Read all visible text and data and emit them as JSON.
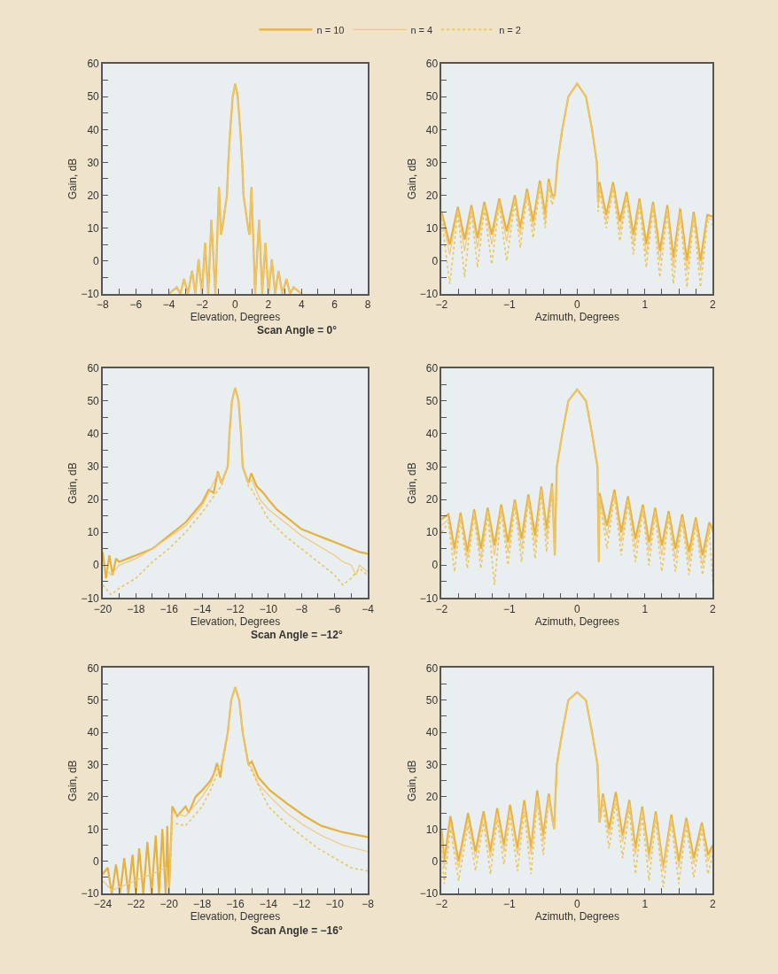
{
  "chart_data": [
    {
      "type": "line",
      "xlabel": "Elevation, Degrees",
      "ylabel": "Gain, dB",
      "annotations": [
        "Scan Angle = 0°"
      ],
      "legend": "top",
      "xlim": [
        -8,
        8
      ],
      "xticks": [
        -8,
        {
          "value": -7,
          "label": null
        },
        -6,
        {
          "value": -5,
          "label": null
        },
        -4,
        {
          "value": -3,
          "label": null
        },
        -2,
        {
          "value": -1,
          "label": null
        },
        0,
        {
          "value": 1,
          "label": null
        },
        2,
        {
          "value": 3,
          "label": null
        },
        4,
        {
          "value": 5,
          "label": null
        },
        6,
        {
          "value": 7,
          "label": null
        },
        8
      ],
      "ylim": [
        -10,
        60
      ],
      "yticks": [
        -10,
        {
          "value": -5,
          "label": null
        },
        0,
        {
          "value": 5,
          "label": null
        },
        10,
        {
          "value": 15,
          "label": null
        },
        20,
        {
          "value": 25,
          "label": null
        },
        30,
        {
          "value": 35,
          "label": null
        },
        40,
        {
          "value": 45,
          "label": null
        },
        50,
        {
          "value": 55,
          "label": null
        },
        60
      ],
      "series": [
        {
          "name": "n = 10",
          "color": "#e6b23a",
          "line_style": "solid",
          "x": [
            -4,
            -3.53,
            -3.31,
            -3.09,
            -2.85,
            -2.61,
            -2.41,
            -2.21,
            -2.01,
            -1.82,
            -1.63,
            -1.44,
            -1.2,
            -0.98,
            -0.86,
            -0.78,
            -0.5,
            -0.42,
            -0.3,
            -0.15,
            0,
            0.15,
            0.3,
            0.42,
            0.5,
            0.78,
            0.86,
            0.98,
            1.2,
            1.44,
            1.63,
            1.82,
            2.01,
            2.21,
            2.41,
            2.61,
            2.85,
            3.09,
            3.31,
            3.53,
            4
          ],
          "values": [
            -10,
            -8,
            -10,
            -5.5,
            -10,
            -3,
            -10,
            0.5,
            -10,
            5.5,
            -10,
            12.5,
            -10,
            22.5,
            8,
            10,
            20,
            30,
            40,
            50,
            54,
            50,
            40,
            30,
            20,
            10,
            8,
            22.5,
            -10,
            12.5,
            -10,
            5.5,
            -10,
            0.5,
            -10,
            -3,
            -10,
            -5.5,
            -10,
            -8,
            -10
          ]
        },
        {
          "name": "n = 4",
          "color": "#f2c77a",
          "line_style": "solid",
          "x": [
            -4,
            -3.53,
            -3.31,
            -3.09,
            -2.85,
            -2.61,
            -2.41,
            -2.21,
            -2.01,
            -1.82,
            -1.63,
            -1.44,
            -1.2,
            -0.98,
            -0.86,
            -0.78,
            -0.5,
            -0.42,
            -0.3,
            -0.15,
            0,
            0.15,
            0.3,
            0.42,
            0.5,
            0.78,
            0.86,
            0.98,
            1.2,
            1.44,
            1.63,
            1.82,
            2.01,
            2.21,
            2.41,
            2.61,
            2.85,
            3.09,
            3.31,
            3.53,
            4
          ],
          "values": [
            -10,
            -8,
            -10,
            -5.5,
            -10,
            -3,
            -10,
            0.5,
            -10,
            5.5,
            -10,
            12.5,
            -10,
            22.5,
            8,
            10,
            20,
            30,
            40,
            50,
            54,
            50,
            40,
            30,
            20,
            10,
            8,
            22.5,
            -10,
            12.5,
            -10,
            5.5,
            -10,
            0.5,
            -10,
            -3,
            -10,
            -5.5,
            -10,
            -8,
            -10
          ]
        },
        {
          "name": "n = 2",
          "color": "#e9c55a",
          "line_style": "dotted",
          "x": [
            -4,
            -3.53,
            -3.31,
            -3.09,
            -2.85,
            -2.61,
            -2.41,
            -2.21,
            -2.01,
            -1.82,
            -1.63,
            -1.44,
            -1.2,
            -0.98,
            -0.86,
            -0.78,
            -0.5,
            -0.42,
            -0.3,
            -0.15,
            0,
            0.15,
            0.3,
            0.42,
            0.5,
            0.78,
            0.86,
            0.98,
            1.2,
            1.44,
            1.63,
            1.82,
            2.01,
            2.21,
            2.41,
            2.61,
            2.85,
            3.09,
            3.31,
            3.53,
            4
          ],
          "values": [
            -10,
            -8,
            -10,
            -5.5,
            -10,
            -3,
            -10,
            0.5,
            -10,
            5.5,
            -10,
            12.5,
            -10,
            22.5,
            8,
            10,
            20,
            30,
            40,
            50,
            54,
            50,
            40,
            30,
            20,
            10,
            8,
            22.5,
            -10,
            12.5,
            -10,
            5.5,
            -10,
            0.5,
            -10,
            -3,
            -10,
            -5.5,
            -10,
            -8,
            -10
          ]
        }
      ]
    },
    {
      "type": "line",
      "xlabel": "Azimuth, Degrees",
      "ylabel": "Gain, dB",
      "xlim": [
        -2,
        2
      ],
      "xticks": [
        -2,
        {
          "value": -1.75,
          "label": null
        },
        {
          "value": -1.5,
          "label": null
        },
        {
          "value": -1.25,
          "label": null
        },
        -1,
        {
          "value": -0.75,
          "label": null
        },
        {
          "value": -0.5,
          "label": null
        },
        {
          "value": -0.25,
          "label": null
        },
        0,
        {
          "value": 0.25,
          "label": null
        },
        {
          "value": 0.5,
          "label": null
        },
        {
          "value": 0.75,
          "label": null
        },
        1,
        {
          "value": 1.25,
          "label": null
        },
        {
          "value": 1.5,
          "label": null
        },
        {
          "value": 1.75,
          "label": null
        },
        2
      ],
      "ylim": [
        -10,
        60
      ],
      "yticks": [
        -10,
        {
          "value": -5,
          "label": null
        },
        0,
        {
          "value": 5,
          "label": null
        },
        10,
        {
          "value": 15,
          "label": null
        },
        20,
        {
          "value": 25,
          "label": null
        },
        30,
        {
          "value": 35,
          "label": null
        },
        40,
        {
          "value": 45,
          "label": null
        },
        50,
        {
          "value": 55,
          "label": null
        },
        60
      ],
      "series": [
        {
          "color": "#e6b23a",
          "line_style": "solid",
          "x": [
            -2,
            -1.88,
            -1.76,
            -1.66,
            -1.56,
            -1.47,
            -1.37,
            -1.26,
            -1.15,
            -1.04,
            -0.92,
            -0.84,
            -0.74,
            -0.65,
            -0.55,
            -0.47,
            -0.42,
            -0.37,
            -0.33,
            -0.29,
            -0.22,
            -0.13,
            0,
            0.13,
            0.22,
            0.29,
            0.31,
            0.33,
            0.43,
            0.53,
            0.63,
            0.73,
            0.83,
            0.92,
            1.02,
            1.12,
            1.22,
            1.33,
            1.42,
            1.52,
            1.62,
            1.72,
            1.82,
            1.92,
            2
          ],
          "values": [
            15,
            5,
            16.5,
            6.5,
            17,
            7,
            18,
            8,
            19,
            9,
            20,
            10,
            22,
            12,
            24.5,
            14,
            25,
            20,
            20,
            30,
            40,
            50,
            54,
            50,
            40,
            30,
            18,
            24,
            14,
            24,
            12,
            21,
            8,
            19,
            5,
            18,
            3,
            17,
            1,
            16,
            0,
            15,
            0,
            14,
            13.5
          ]
        },
        {
          "color": "#f2c77a",
          "line_style": "solid",
          "x": [
            -2,
            -1.88,
            -1.76,
            -1.66,
            -1.56,
            -1.47,
            -1.37,
            -1.26,
            -1.15,
            -1.04,
            -0.92,
            -0.84,
            -0.74,
            -0.65,
            -0.55,
            -0.47,
            -0.42,
            -0.37,
            -0.33,
            -0.29,
            -0.22,
            -0.13,
            0,
            0.13,
            0.22,
            0.29,
            0.31,
            0.33,
            0.43,
            0.53,
            0.63,
            0.73,
            0.83,
            0.92,
            1.02,
            1.12,
            1.22,
            1.33,
            1.42,
            1.52,
            1.62,
            1.72,
            1.82,
            1.92,
            2
          ],
          "values": [
            14,
            2,
            15.5,
            3,
            16,
            4,
            17,
            5,
            18,
            6,
            19,
            8,
            21,
            10,
            23.5,
            12,
            24,
            19,
            20,
            30,
            40,
            50,
            54,
            50,
            40,
            30,
            17,
            23,
            12,
            23,
            9,
            20,
            5,
            18,
            2,
            17,
            0,
            16,
            -2,
            15,
            -3,
            14,
            -3,
            13,
            12.5
          ]
        },
        {
          "color": "#e9c55a",
          "line_style": "dotted",
          "x": [
            -2,
            -1.88,
            -1.76,
            -1.66,
            -1.56,
            -1.47,
            -1.37,
            -1.26,
            -1.15,
            -1.04,
            -0.92,
            -0.84,
            -0.74,
            -0.65,
            -0.55,
            -0.47,
            -0.42,
            -0.37,
            -0.33,
            -0.29,
            -0.22,
            -0.13,
            0,
            0.13,
            0.22,
            0.29,
            0.31,
            0.33,
            0.43,
            0.53,
            0.63,
            0.73,
            0.83,
            0.92,
            1.02,
            1.12,
            1.22,
            1.33,
            1.42,
            1.52,
            1.62,
            1.72,
            1.82,
            1.92,
            2
          ],
          "values": [
            13,
            -7,
            14.5,
            -5,
            15,
            -2,
            16,
            -1,
            17,
            0,
            18,
            4,
            20,
            7,
            22.5,
            10,
            23,
            17,
            20,
            30,
            40,
            50,
            54,
            50,
            40,
            30,
            15,
            22,
            10,
            22,
            6,
            19,
            2,
            17,
            -2,
            16,
            -5,
            15,
            -7,
            14,
            -8,
            13,
            -8,
            12,
            11
          ]
        }
      ]
    },
    {
      "type": "line",
      "xlabel": "Elevation, Degrees",
      "ylabel": "Gain, dB",
      "annotations": [
        "Scan Angle = −12°"
      ],
      "xlim": [
        -20,
        -4
      ],
      "xticks": [
        -20,
        {
          "value": -19,
          "label": null
        },
        -18,
        {
          "value": -17,
          "label": null
        },
        -16,
        {
          "value": -15,
          "label": null
        },
        -14,
        {
          "value": -13,
          "label": null
        },
        -12,
        {
          "value": -11,
          "label": null
        },
        -10,
        {
          "value": -9,
          "label": null
        },
        -8,
        {
          "value": -7,
          "label": null
        },
        -6,
        {
          "value": -5,
          "label": null
        },
        -4
      ],
      "ylim": [
        -10,
        60
      ],
      "yticks": [
        -10,
        {
          "value": -5,
          "label": null
        },
        0,
        {
          "value": 5,
          "label": null
        },
        10,
        {
          "value": 15,
          "label": null
        },
        20,
        {
          "value": 25,
          "label": null
        },
        30,
        {
          "value": 35,
          "label": null
        },
        40,
        {
          "value": 45,
          "label": null
        },
        50,
        {
          "value": 55,
          "label": null
        },
        60
      ],
      "series": [
        {
          "color": "#e6b23a",
          "line_style": "solid",
          "x": [
            -20,
            -19.8,
            -19.6,
            -19.4,
            -19.2,
            -19,
            -18.5,
            -18,
            -17.5,
            -17,
            -16.5,
            -16,
            -15.5,
            -15,
            -14.5,
            -14,
            -13.6,
            -13.3,
            -13.05,
            -12.84,
            -12.45,
            -12.35,
            -12.2,
            -12,
            -11.8,
            -11.65,
            -11.55,
            -11.2,
            -11.03,
            -10.7,
            -10.3,
            -10,
            -9.5,
            -9,
            -8.5,
            -8,
            -7.5,
            -7,
            -6.5,
            -6,
            -5.5,
            -5,
            -4.5,
            -4
          ],
          "values": [
            4,
            -4,
            3,
            -3,
            2,
            1,
            2,
            3,
            4,
            5,
            7,
            9,
            11,
            13,
            16,
            19,
            23,
            22,
            28.5,
            25,
            30,
            40,
            50,
            54,
            50,
            40,
            30,
            25,
            28,
            24,
            22,
            20,
            17,
            15,
            13,
            11,
            10,
            9,
            8,
            7,
            6,
            5,
            4,
            3.5
          ]
        },
        {
          "color": "#f2c77a",
          "line_style": "solid",
          "x": [
            -20,
            -19.5,
            -19,
            -18.5,
            -18,
            -17,
            -16,
            -15,
            -14,
            -13.6,
            -13.05,
            -12.84,
            -12.45,
            -12.35,
            -12.2,
            -12,
            -11.8,
            -11.65,
            -11.55,
            -11.2,
            -11,
            -10.5,
            -10,
            -9,
            -8,
            -7,
            -6,
            -5.5,
            -5,
            -4.7,
            -4.5,
            -4
          ],
          "values": [
            0,
            -3,
            0,
            1,
            2,
            5,
            8.5,
            12,
            18,
            22,
            28,
            25,
            30,
            40,
            50,
            54,
            50,
            40,
            30,
            25,
            26,
            20,
            17,
            13,
            9,
            6,
            3,
            1,
            0,
            -3,
            0,
            -2
          ]
        },
        {
          "color": "#e9c55a",
          "line_style": "dotted",
          "x": [
            -20,
            -19.5,
            -19,
            -18,
            -17,
            -16,
            -15,
            -14,
            -13.3,
            -12.84,
            -12.45,
            -12.35,
            -12.2,
            -12,
            -11.8,
            -11.65,
            -11.55,
            -11.2,
            -11,
            -10,
            -9,
            -8,
            -7,
            -6,
            -5.5,
            -5,
            -4.5,
            -4
          ],
          "values": [
            -6,
            -9,
            -7,
            -4,
            1,
            5,
            10,
            16,
            21,
            24,
            30,
            40,
            50,
            54,
            50,
            40,
            30,
            24,
            23,
            14,
            9,
            5,
            1,
            -3,
            -6,
            -4,
            -1,
            -3
          ]
        }
      ]
    },
    {
      "type": "line",
      "xlabel": "Azimuth, Degrees",
      "ylabel": "Gain, dB",
      "xlim": [
        -2,
        2
      ],
      "xticks": [
        -2,
        {
          "value": -1.75,
          "label": null
        },
        {
          "value": -1.5,
          "label": null
        },
        {
          "value": -1.25,
          "label": null
        },
        -1,
        {
          "value": -0.75,
          "label": null
        },
        {
          "value": -0.5,
          "label": null
        },
        {
          "value": -0.25,
          "label": null
        },
        0,
        {
          "value": 0.25,
          "label": null
        },
        {
          "value": 0.5,
          "label": null
        },
        {
          "value": 0.75,
          "label": null
        },
        1,
        {
          "value": 1.25,
          "label": null
        },
        {
          "value": 1.5,
          "label": null
        },
        {
          "value": 1.75,
          "label": null
        },
        2
      ],
      "ylim": [
        -10,
        60
      ],
      "yticks": [
        -10,
        {
          "value": -5,
          "label": null
        },
        0,
        {
          "value": 5,
          "label": null
        },
        10,
        {
          "value": 15,
          "label": null
        },
        20,
        {
          "value": 25,
          "label": null
        },
        30,
        {
          "value": 35,
          "label": null
        },
        40,
        {
          "value": 45,
          "label": null
        },
        50,
        {
          "value": 55,
          "label": null
        },
        60
      ],
      "series": [
        {
          "color": "#e6b23a",
          "line_style": "solid",
          "x": [
            -2,
            -1.9,
            -1.81,
            -1.72,
            -1.62,
            -1.52,
            -1.42,
            -1.32,
            -1.22,
            -1.12,
            -1.02,
            -0.92,
            -0.82,
            -0.72,
            -0.62,
            -0.53,
            -0.45,
            -0.37,
            -0.33,
            -0.3,
            -0.22,
            -0.13,
            0,
            0.13,
            0.22,
            0.3,
            0.32,
            0.33,
            0.44,
            0.55,
            0.65,
            0.75,
            0.86,
            0.97,
            1.06,
            1.15,
            1.25,
            1.35,
            1.45,
            1.55,
            1.65,
            1.75,
            1.85,
            1.95,
            2
          ],
          "values": [
            14,
            15.5,
            5,
            16,
            4,
            17,
            5,
            17.5,
            6,
            18.5,
            7,
            20,
            8,
            21.5,
            9,
            24,
            11,
            25,
            3,
            30,
            40,
            50,
            53.5,
            50,
            40,
            30,
            1,
            22,
            12,
            23,
            10,
            21,
            8,
            18.5,
            7,
            17.5,
            6,
            16.5,
            5,
            15.5,
            4,
            14.5,
            3,
            13,
            11
          ]
        },
        {
          "color": "#f2c77a",
          "line_style": "solid",
          "x": [
            -2,
            -1.9,
            -1.81,
            -1.72,
            -1.62,
            -1.52,
            -1.42,
            -1.32,
            -1.22,
            -1.12,
            -1.02,
            -0.92,
            -0.82,
            -0.72,
            -0.62,
            -0.53,
            -0.45,
            -0.37,
            -0.33,
            -0.3,
            -0.22,
            -0.13,
            0,
            0.13,
            0.22,
            0.3,
            0.32,
            0.33,
            0.44,
            0.55,
            0.65,
            0.75,
            0.86,
            0.97,
            1.06,
            1.15,
            1.25,
            1.35,
            1.45,
            1.55,
            1.65,
            1.75,
            1.85,
            1.95,
            2
          ],
          "values": [
            12,
            14,
            3,
            15,
            2,
            16,
            2,
            16.5,
            3,
            17.5,
            4,
            19,
            5,
            20.5,
            6,
            23,
            8,
            24,
            3,
            30,
            40,
            50,
            53.5,
            50,
            40,
            30,
            1,
            21,
            9,
            22,
            7,
            20,
            5,
            17.5,
            4,
            16.5,
            3,
            15.5,
            2,
            14.5,
            1,
            13.5,
            0,
            12,
            10
          ]
        },
        {
          "color": "#e9c55a",
          "line_style": "dotted",
          "x": [
            -2,
            -1.9,
            -1.81,
            -1.72,
            -1.62,
            -1.52,
            -1.42,
            -1.32,
            -1.22,
            -1.12,
            -1.02,
            -0.92,
            -0.82,
            -0.72,
            -0.62,
            -0.53,
            -0.45,
            -0.37,
            -0.33,
            -0.3,
            -0.22,
            -0.13,
            0,
            0.13,
            0.22,
            0.3,
            0.32,
            0.33,
            0.44,
            0.55,
            0.65,
            0.75,
            0.86,
            0.97,
            1.06,
            1.15,
            1.25,
            1.35,
            1.45,
            1.55,
            1.65,
            1.75,
            1.85,
            1.95,
            2
          ],
          "values": [
            10,
            13,
            -2,
            14,
            -1,
            15,
            -1,
            15.5,
            -6,
            16.5,
            0,
            18,
            1,
            19.5,
            2,
            22,
            4,
            23,
            3,
            30,
            40,
            50,
            53.5,
            50,
            40,
            30,
            1,
            20,
            5,
            21,
            3,
            19,
            1,
            16.5,
            0,
            15.5,
            -2,
            14.5,
            -2,
            13.5,
            -3,
            12.5,
            -3,
            11,
            -5
          ]
        }
      ]
    },
    {
      "type": "line",
      "xlabel": "Elevation, Degrees",
      "ylabel": "Gain, dB",
      "annotations": [
        "Scan Angle = −16°"
      ],
      "xlim": [
        -24,
        -8
      ],
      "xticks": [
        -24,
        {
          "value": -23,
          "label": null
        },
        -22,
        {
          "value": -21,
          "label": null
        },
        -20,
        {
          "value": -19,
          "label": null
        },
        -18,
        {
          "value": -17,
          "label": null
        },
        -16,
        {
          "value": -15,
          "label": null
        },
        -14,
        {
          "value": -13,
          "label": null
        },
        -12,
        {
          "value": -11,
          "label": null
        },
        -10,
        {
          "value": -9,
          "label": null
        },
        -8
      ],
      "ylim": [
        -10,
        60
      ],
      "yticks": [
        -10,
        {
          "value": -5,
          "label": null
        },
        0,
        {
          "value": 5,
          "label": null
        },
        10,
        {
          "value": 15,
          "label": null
        },
        20,
        {
          "value": 25,
          "label": null
        },
        30,
        {
          "value": 35,
          "label": null
        },
        40,
        {
          "value": 45,
          "label": null
        },
        50,
        {
          "value": 55,
          "label": null
        },
        60
      ],
      "series": [
        {
          "color": "#e6b23a",
          "line_style": "solid",
          "x": [
            -24,
            -23.7,
            -23.45,
            -23.2,
            -22.95,
            -22.7,
            -22.45,
            -22.2,
            -22,
            -21.8,
            -21.55,
            -21.3,
            -21.05,
            -20.8,
            -20.6,
            -20.4,
            -20.2,
            -20.1,
            -20,
            -19.8,
            -19.5,
            -19,
            -18.8,
            -18.4,
            -18,
            -17.5,
            -17.3,
            -17.1,
            -16.9,
            -16.8,
            -16.45,
            -16.24,
            -16,
            -15.76,
            -15.55,
            -15.2,
            -15,
            -14.6,
            -13.9,
            -12.9,
            -11.8,
            -10.8,
            -9.5,
            -8
          ],
          "values": [
            -4,
            -2,
            -10,
            -1,
            -10,
            1,
            -10,
            2,
            -10,
            4,
            -10,
            6,
            -10,
            8,
            -10,
            10,
            -10,
            11,
            -10,
            17,
            14,
            17,
            15,
            20,
            22,
            25,
            27,
            30.5,
            26,
            30,
            40,
            50,
            54,
            50,
            40,
            30,
            31,
            26,
            22,
            18,
            14,
            11,
            9,
            7.5
          ]
        },
        {
          "color": "#f2c77a",
          "line_style": "solid",
          "x": [
            -24,
            -23.45,
            -22.95,
            -22.45,
            -22,
            -21.55,
            -21.05,
            -20.6,
            -20.2,
            -20,
            -19.8,
            -19,
            -18,
            -17.5,
            -17.1,
            -16.8,
            -16.45,
            -16.24,
            -16,
            -15.76,
            -15.55,
            -15.2,
            -15,
            -14.6,
            -13.9,
            -12.9,
            -11.8,
            -10.8,
            -9.5,
            -8
          ],
          "values": [
            -6,
            -9,
            -8,
            -7,
            -6,
            -5,
            -4,
            -3,
            -2,
            -10,
            15,
            14,
            20,
            24,
            29,
            30,
            40,
            50,
            54,
            50,
            40,
            30,
            29,
            24,
            20,
            15,
            11,
            8,
            5,
            3
          ]
        },
        {
          "color": "#e9c55a",
          "line_style": "dotted",
          "x": [
            -20,
            -19.8,
            -19,
            -18,
            -17.5,
            -17.1,
            -16.8,
            -16.45,
            -16.24,
            -16,
            -15.76,
            -15.55,
            -15.2,
            -15,
            -14,
            -13,
            -12,
            -11,
            -10,
            -9,
            -8
          ],
          "values": [
            -10,
            12,
            11,
            17,
            22,
            27,
            30,
            40,
            50,
            54,
            50,
            40,
            30,
            28,
            17,
            12,
            8,
            4,
            1,
            -2,
            -3
          ]
        }
      ]
    },
    {
      "type": "line",
      "xlabel": "Azimuth, Degrees",
      "ylabel": "Gain, dB",
      "xlim": [
        -2,
        2
      ],
      "xticks": [
        -2,
        {
          "value": -1.75,
          "label": null
        },
        {
          "value": -1.5,
          "label": null
        },
        {
          "value": -1.25,
          "label": null
        },
        -1,
        {
          "value": -0.75,
          "label": null
        },
        {
          "value": -0.5,
          "label": null
        },
        {
          "value": -0.25,
          "label": null
        },
        0,
        {
          "value": 0.25,
          "label": null
        },
        {
          "value": 0.5,
          "label": null
        },
        {
          "value": 0.75,
          "label": null
        },
        1,
        {
          "value": 1.25,
          "label": null
        },
        {
          "value": 1.5,
          "label": null
        },
        {
          "value": 1.75,
          "label": null
        },
        2
      ],
      "ylim": [
        -10,
        60
      ],
      "yticks": [
        -10,
        {
          "value": -5,
          "label": null
        },
        0,
        {
          "value": 5,
          "label": null
        },
        10,
        {
          "value": 15,
          "label": null
        },
        20,
        {
          "value": 25,
          "label": null
        },
        30,
        {
          "value": 35,
          "label": null
        },
        40,
        {
          "value": 45,
          "label": null
        },
        50,
        {
          "value": 55,
          "label": null
        },
        60
      ],
      "series": [
        {
          "color": "#e6b23a",
          "line_style": "solid",
          "x": [
            -2,
            -1.96,
            -1.87,
            -1.75,
            -1.61,
            -1.5,
            -1.38,
            -1.28,
            -1.18,
            -1.08,
            -0.99,
            -0.88,
            -0.78,
            -0.68,
            -0.59,
            -0.5,
            -0.42,
            -0.34,
            -0.3,
            -0.22,
            -0.13,
            0,
            0.13,
            0.22,
            0.3,
            0.33,
            0.38,
            0.47,
            0.57,
            0.67,
            0.77,
            0.86,
            0.96,
            1.06,
            1.16,
            1.27,
            1.39,
            1.5,
            1.61,
            1.72,
            1.84,
            1.93,
            2
          ],
          "values": [
            10,
            0,
            14,
            0,
            15,
            3,
            15.5,
            3,
            16.5,
            5,
            17.5,
            4,
            19,
            4,
            22,
            8,
            21,
            10,
            30,
            40,
            50,
            52.5,
            50,
            40,
            30,
            12,
            21,
            10,
            21.5,
            8,
            19,
            4,
            17,
            2,
            15.5,
            -2,
            14.5,
            0,
            13.5,
            1,
            12,
            2,
            5
          ]
        },
        {
          "color": "#f2c77a",
          "line_style": "solid",
          "x": [
            -2,
            -1.96,
            -1.87,
            -1.75,
            -1.61,
            -1.5,
            -1.38,
            -1.28,
            -1.18,
            -1.08,
            -0.99,
            -0.88,
            -0.78,
            -0.68,
            -0.59,
            -0.5,
            -0.42,
            -0.34,
            -0.3,
            -0.22,
            -0.13,
            0,
            0.13,
            0.22,
            0.3,
            0.33,
            0.38,
            0.47,
            0.57,
            0.67,
            0.77,
            0.86,
            0.96,
            1.06,
            1.16,
            1.27,
            1.39,
            1.5,
            1.61,
            1.72,
            1.84,
            1.93,
            2
          ],
          "values": [
            8,
            -2,
            12,
            -2,
            13,
            1,
            14,
            1,
            15,
            3,
            16,
            2,
            17.5,
            2,
            20.5,
            6,
            20,
            10,
            30,
            40,
            50,
            52.5,
            50,
            40,
            30,
            12,
            20,
            8,
            20,
            6,
            18,
            2,
            16,
            0,
            14.5,
            -3,
            13.5,
            -2,
            12.5,
            -1,
            11,
            0,
            4
          ]
        },
        {
          "color": "#e9c55a",
          "line_style": "dotted",
          "x": [
            -2,
            -1.96,
            -1.87,
            -1.75,
            -1.61,
            -1.5,
            -1.38,
            -1.28,
            -1.18,
            -1.08,
            -0.99,
            -0.88,
            -0.78,
            -0.68,
            -0.59,
            -0.5,
            -0.42,
            -0.34,
            -0.3,
            -0.22,
            -0.13,
            0,
            0.13,
            0.22,
            0.3,
            0.33,
            0.38,
            0.47,
            0.57,
            0.67,
            0.77,
            0.86,
            0.96,
            1.06,
            1.16,
            1.27,
            1.39,
            1.5,
            1.61,
            1.72,
            1.84,
            1.93,
            2
          ],
          "values": [
            5,
            -7,
            10,
            -6,
            11,
            -3,
            12,
            -4,
            13,
            -1,
            14,
            -3,
            15.5,
            -4,
            18.5,
            2,
            19,
            10,
            30,
            40,
            50,
            52.5,
            50,
            40,
            30,
            12,
            18,
            4,
            18,
            1,
            16,
            -4,
            14,
            -6,
            13,
            -8,
            12,
            -7,
            11,
            -5,
            10,
            -4,
            2
          ]
        }
      ]
    }
  ]
}
